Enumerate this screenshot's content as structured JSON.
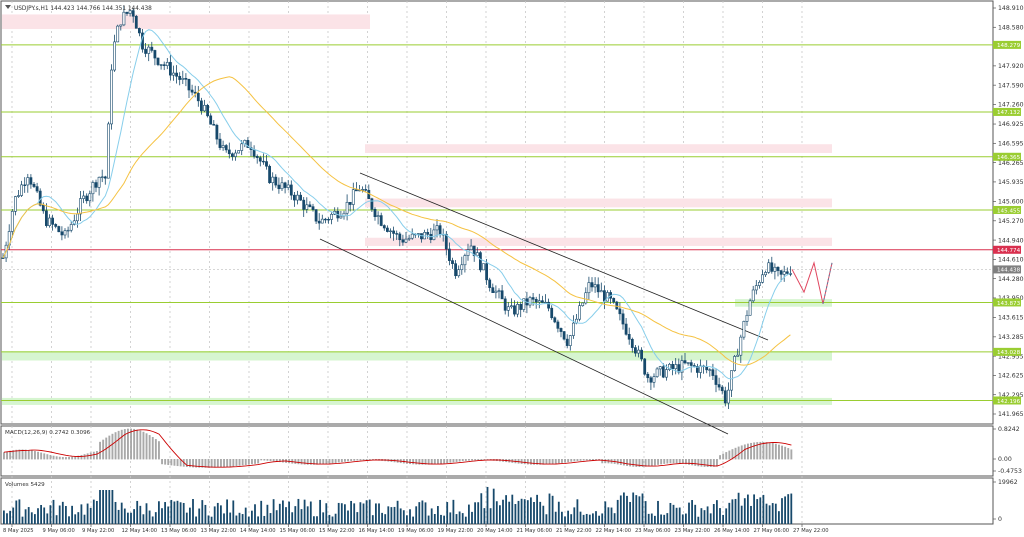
{
  "title": "USDJPY.s,H1  144.423 144.766 144.351 144.438",
  "macd_label": "MACD(12,26,9) 0.2742 0.3096",
  "volumes_label": "Volumes 5429",
  "price_axis": {
    "labels": [
      "148.910",
      "148.580",
      "147.920",
      "147.590",
      "147.260",
      "146.925",
      "146.595",
      "146.265",
      "145.935",
      "145.600",
      "145.270",
      "144.940",
      "144.610",
      "144.280",
      "143.950",
      "143.615",
      "143.285",
      "142.955",
      "142.625",
      "142.295",
      "141.965"
    ],
    "min": 141.965,
    "max": 148.91
  },
  "levels": [
    {
      "value": 148.279,
      "label": "148.279",
      "color": "#9acd32"
    },
    {
      "value": 147.132,
      "label": "147.132",
      "color": "#9acd32"
    },
    {
      "value": 146.365,
      "label": "146.365",
      "color": "#9acd32"
    },
    {
      "value": 145.455,
      "label": "145.455",
      "color": "#9acd32"
    },
    {
      "value": 143.873,
      "label": "143.873",
      "color": "#9acd32"
    },
    {
      "value": 143.028,
      "label": "143.028",
      "color": "#9acd32"
    },
    {
      "value": 142.196,
      "label": "142.196",
      "color": "#9acd32"
    }
  ],
  "resistance": {
    "value": 144.774,
    "label": "144.774",
    "color": "#d9304f"
  },
  "current_price": {
    "value": 144.438,
    "label": "144.438",
    "color": "#7f7f7f"
  },
  "macd_axis": {
    "labels": [
      "0.8242",
      "0.00",
      "-0.4753"
    ]
  },
  "volume_axis": {
    "labels": [
      "19962",
      "0"
    ]
  },
  "time_labels": [
    "8 May 2025",
    "9 May 06:00",
    "9 May 22:00",
    "12 May 14:00",
    "13 May 06:00",
    "13 May 22:00",
    "14 May 14:00",
    "15 May 06:00",
    "15 May 22:00",
    "16 May 14:00",
    "19 May 06:00",
    "19 May 22:00",
    "20 May 14:00",
    "21 May 06:00",
    "21 May 22:00",
    "22 May 14:00",
    "23 May 06:00",
    "23 May 22:00",
    "26 May 14:00",
    "27 May 06:00",
    "27 May 22:00"
  ],
  "colors": {
    "candle": "#17496b",
    "ma_fast": "#87ceeb",
    "ma_slow": "#f5c242",
    "zone_red": "#fbe3e7",
    "zone_green": "#d6f5d0",
    "forecast": "#e0455e",
    "macd_signal": "#cc0000",
    "volume": "#17496b"
  }
}
